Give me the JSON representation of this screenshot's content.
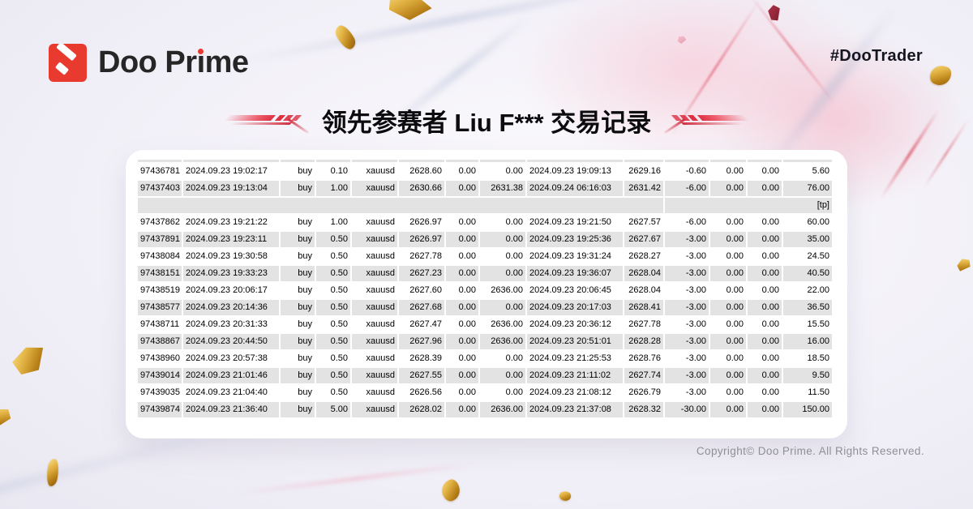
{
  "brand": {
    "logo_text": "Doo Prime",
    "logo_parts": {
      "pre": "Doo Pr",
      "dotless_i": "ı",
      "post": "me"
    },
    "hashtag": "#DooTrader"
  },
  "header": {
    "title": "领先参赛者 Liu F*** 交易记录"
  },
  "colors": {
    "brand_red": "#e93a30",
    "deco_red": "#dd3143",
    "gold": "#d09a2e",
    "row_shade": "#e3e3e3",
    "text_dark": "#15151f",
    "copyright_gray": "#8f8f97"
  },
  "table": {
    "columns": [
      "ticket",
      "open_time",
      "type",
      "size",
      "symbol",
      "open_price",
      "s_l",
      "t_p",
      "close_time",
      "close_price",
      "commission",
      "taxes",
      "swap",
      "profit"
    ],
    "section_label": "[tp]",
    "rows": [
      {
        "shaded": false,
        "cells": [
          "97436781",
          "2024.09.23 19:02:17",
          "buy",
          "0.10",
          "xauusd",
          "2628.60",
          "0.00",
          "0.00",
          "2024.09.23 19:09:13",
          "2629.16",
          "-0.60",
          "0.00",
          "0.00",
          "5.60"
        ]
      },
      {
        "shaded": true,
        "cells": [
          "97437403",
          "2024.09.23 19:13:04",
          "buy",
          "1.00",
          "xauusd",
          "2630.66",
          "0.00",
          "2631.38",
          "2024.09.24 06:16:03",
          "2631.42",
          "-6.00",
          "0.00",
          "0.00",
          "76.00"
        ]
      },
      {
        "section": true,
        "shaded": true,
        "label": "[tp]"
      },
      {
        "shaded": false,
        "cells": [
          "97437862",
          "2024.09.23 19:21:22",
          "buy",
          "1.00",
          "xauusd",
          "2626.97",
          "0.00",
          "0.00",
          "2024.09.23 19:21:50",
          "2627.57",
          "-6.00",
          "0.00",
          "0.00",
          "60.00"
        ]
      },
      {
        "shaded": true,
        "cells": [
          "97437891",
          "2024.09.23 19:23:11",
          "buy",
          "0.50",
          "xauusd",
          "2626.97",
          "0.00",
          "0.00",
          "2024.09.23 19:25:36",
          "2627.67",
          "-3.00",
          "0.00",
          "0.00",
          "35.00"
        ]
      },
      {
        "shaded": false,
        "cells": [
          "97438084",
          "2024.09.23 19:30:58",
          "buy",
          "0.50",
          "xauusd",
          "2627.78",
          "0.00",
          "0.00",
          "2024.09.23 19:31:24",
          "2628.27",
          "-3.00",
          "0.00",
          "0.00",
          "24.50"
        ]
      },
      {
        "shaded": true,
        "cells": [
          "97438151",
          "2024.09.23 19:33:23",
          "buy",
          "0.50",
          "xauusd",
          "2627.23",
          "0.00",
          "0.00",
          "2024.09.23 19:36:07",
          "2628.04",
          "-3.00",
          "0.00",
          "0.00",
          "40.50"
        ]
      },
      {
        "shaded": false,
        "cells": [
          "97438519",
          "2024.09.23 20:06:17",
          "buy",
          "0.50",
          "xauusd",
          "2627.60",
          "0.00",
          "2636.00",
          "2024.09.23 20:06:45",
          "2628.04",
          "-3.00",
          "0.00",
          "0.00",
          "22.00"
        ]
      },
      {
        "shaded": true,
        "cells": [
          "97438577",
          "2024.09.23 20:14:36",
          "buy",
          "0.50",
          "xauusd",
          "2627.68",
          "0.00",
          "0.00",
          "2024.09.23 20:17:03",
          "2628.41",
          "-3.00",
          "0.00",
          "0.00",
          "36.50"
        ]
      },
      {
        "shaded": false,
        "cells": [
          "97438711",
          "2024.09.23 20:31:33",
          "buy",
          "0.50",
          "xauusd",
          "2627.47",
          "0.00",
          "2636.00",
          "2024.09.23 20:36:12",
          "2627.78",
          "-3.00",
          "0.00",
          "0.00",
          "15.50"
        ]
      },
      {
        "shaded": true,
        "cells": [
          "97438867",
          "2024.09.23 20:44:50",
          "buy",
          "0.50",
          "xauusd",
          "2627.96",
          "0.00",
          "2636.00",
          "2024.09.23 20:51:01",
          "2628.28",
          "-3.00",
          "0.00",
          "0.00",
          "16.00"
        ]
      },
      {
        "shaded": false,
        "cells": [
          "97438960",
          "2024.09.23 20:57:38",
          "buy",
          "0.50",
          "xauusd",
          "2628.39",
          "0.00",
          "0.00",
          "2024.09.23 21:25:53",
          "2628.76",
          "-3.00",
          "0.00",
          "0.00",
          "18.50"
        ]
      },
      {
        "shaded": true,
        "cells": [
          "97439014",
          "2024.09.23 21:01:46",
          "buy",
          "0.50",
          "xauusd",
          "2627.55",
          "0.00",
          "0.00",
          "2024.09.23 21:11:02",
          "2627.74",
          "-3.00",
          "0.00",
          "0.00",
          "9.50"
        ]
      },
      {
        "shaded": false,
        "cells": [
          "97439035",
          "2024.09.23 21:04:40",
          "buy",
          "0.50",
          "xauusd",
          "2626.56",
          "0.00",
          "0.00",
          "2024.09.23 21:08:12",
          "2626.79",
          "-3.00",
          "0.00",
          "0.00",
          "11.50"
        ]
      },
      {
        "shaded": true,
        "cells": [
          "97439874",
          "2024.09.23 21:36:40",
          "buy",
          "5.00",
          "xauusd",
          "2628.02",
          "0.00",
          "2636.00",
          "2024.09.23 21:37:08",
          "2628.32",
          "-30.00",
          "0.00",
          "0.00",
          "150.00"
        ]
      }
    ]
  },
  "footer": {
    "copyright": "Copyright© Doo Prime. All Rights Reserved."
  }
}
